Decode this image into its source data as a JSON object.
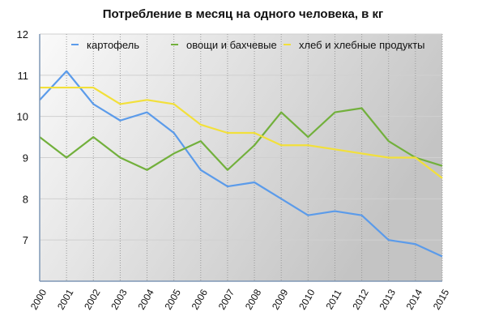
{
  "chart_data": {
    "type": "line",
    "title": "Потребление в месяц на одного человека, в кг",
    "xlabel": "",
    "ylabel": "",
    "categories": [
      "2000",
      "2001",
      "2002",
      "2003",
      "2004",
      "2005",
      "2006",
      "2007",
      "2008",
      "2009",
      "2010",
      "2011",
      "2012",
      "2013",
      "2014",
      "2015"
    ],
    "ylim": [
      6,
      12
    ],
    "yticks": [
      7,
      8,
      9,
      10,
      11,
      12
    ],
    "grid": true,
    "legend": "top",
    "series": [
      {
        "name": "картофель",
        "color": "#5b9bea",
        "values": [
          10.4,
          11.1,
          10.3,
          9.9,
          10.1,
          9.6,
          8.7,
          8.3,
          8.4,
          8.0,
          7.6,
          7.7,
          7.6,
          7.0,
          6.9,
          6.6
        ]
      },
      {
        "name": "овощи и бахчевые",
        "color": "#72b03c",
        "values": [
          9.5,
          9.0,
          9.5,
          9.0,
          8.7,
          9.1,
          9.4,
          8.7,
          9.3,
          10.1,
          9.5,
          10.1,
          10.2,
          9.4,
          9.0,
          8.8
        ]
      },
      {
        "name": "хлеб и хлебные продукты",
        "color": "#f2e03a",
        "values": [
          10.7,
          10.7,
          10.7,
          10.3,
          10.4,
          10.3,
          9.8,
          9.6,
          9.6,
          9.3,
          9.3,
          9.2,
          9.1,
          9.0,
          9.0,
          8.5
        ]
      }
    ]
  }
}
